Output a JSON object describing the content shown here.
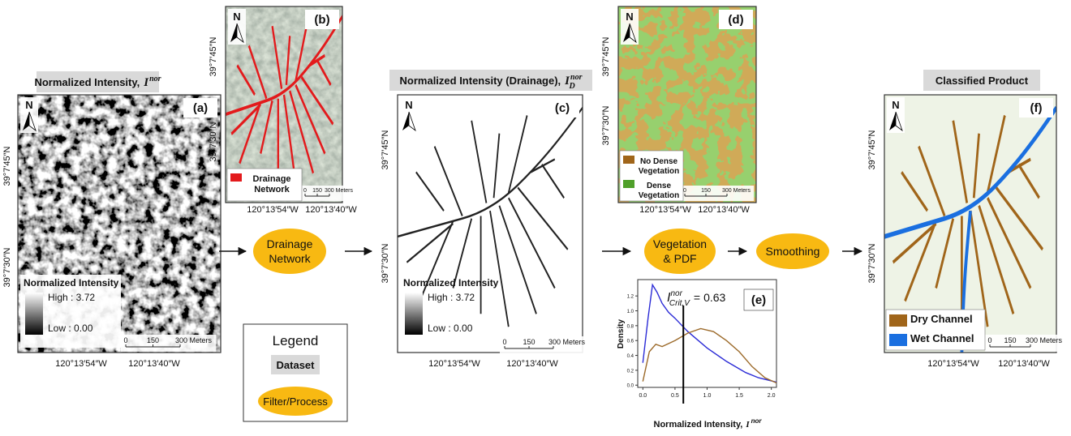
{
  "panels": {
    "a": {
      "header": {
        "text": "Normalized Intensity,",
        "symbol": "I",
        "sup": "nor"
      },
      "label": "(a)",
      "north": "N",
      "legend": {
        "title": "Normalized Intensity",
        "high": "High : 3.72",
        "low": "Low : 0.00"
      },
      "scale": [
        "0",
        "150",
        "300 Meters"
      ],
      "lat": [
        "39°7′45″N",
        "39°7′30″N"
      ],
      "lon": [
        "120°13′54″W",
        "120°13′40″W"
      ]
    },
    "b": {
      "label": "(b)",
      "north": "N",
      "legend": {
        "items": [
          {
            "lines": [
              "Drainage",
              "Network"
            ],
            "color": "#e31a1c"
          }
        ]
      },
      "scale": [
        "0",
        "150",
        "300 Meters"
      ],
      "lat": [
        "39°7′45″N",
        "39°7′30″N"
      ],
      "lon": [
        "120°13′54″W",
        "120°13′40″W"
      ]
    },
    "c": {
      "header": {
        "text": "Normalized Intensity (Drainage),",
        "symbol": "I",
        "sub": "D",
        "sup": "nor"
      },
      "label": "(c)",
      "north": "N",
      "legend": {
        "title": "Normalized Intensity",
        "high": "High : 3.72",
        "low": "Low : 0.00"
      },
      "scale": [
        "0",
        "150",
        "300 Meters"
      ],
      "lat": [
        "39°7′45″N",
        "39°7′30″N"
      ],
      "lon": [
        "120°13′54″W",
        "120°13′40″W"
      ]
    },
    "d": {
      "label": "(d)",
      "north": "N",
      "legend": {
        "items": [
          {
            "lines": [
              "No Dense",
              "Vegetation"
            ],
            "color": "#a0651a"
          },
          {
            "lines": [
              "Dense",
              "Vegetation"
            ],
            "color": "#4fa02a"
          }
        ]
      },
      "scale": [
        "0",
        "150",
        "300 Meters"
      ],
      "lat": [
        "39°7′45″N",
        "39°7′30″N"
      ],
      "lon": [
        "120°13′54″W",
        "120°13′40″W"
      ]
    },
    "e": {
      "label": "(e)",
      "y_label": "Density",
      "x_label": {
        "text": "Normalized Intensity,",
        "symbol": "I",
        "sup": "nor"
      },
      "annotation": {
        "symbol": "I",
        "sub": "Crit,V",
        "sup": "nor",
        "equals": "="
      },
      "threshold": 0.63,
      "xlim": [
        -0.08,
        2.08
      ],
      "ylim": [
        -0.03,
        1.42
      ],
      "xticks": [
        {
          "value": 0,
          "label": "0.0"
        },
        0.5,
        {
          "value": 1,
          "label": "1.0"
        },
        1.5,
        {
          "value": 2,
          "label": "2.0"
        }
      ],
      "yticks": [
        {
          "value": 0,
          "label": "0.0"
        },
        0.2,
        0.4,
        0.6,
        0.8,
        {
          "value": 1,
          "label": "1.0"
        },
        1.2
      ],
      "curves": [
        {
          "color": "#2b2bd6",
          "x": [
            0.0,
            0.08,
            0.15,
            0.22,
            0.3,
            0.4,
            0.5,
            0.7,
            1.0,
            1.3,
            1.6,
            1.8,
            2.08
          ],
          "values": [
            0.3,
            0.9,
            1.35,
            1.25,
            1.1,
            0.98,
            0.9,
            0.72,
            0.5,
            0.32,
            0.17,
            0.1,
            0.04
          ]
        },
        {
          "color": "#9c6a2a",
          "x": [
            0.0,
            0.1,
            0.2,
            0.3,
            0.5,
            0.7,
            0.9,
            1.1,
            1.3,
            1.5,
            1.7,
            1.9,
            2.08
          ],
          "values": [
            0.05,
            0.45,
            0.55,
            0.52,
            0.6,
            0.7,
            0.76,
            0.72,
            0.6,
            0.45,
            0.25,
            0.1,
            0.03
          ]
        }
      ]
    },
    "f": {
      "header": {
        "text": "Classified Product"
      },
      "label": "(f)",
      "north": "N",
      "legend": {
        "items": [
          {
            "lines": [
              "Dry Channel"
            ],
            "color": "#a0651a"
          },
          {
            "lines": [
              "Wet Channel"
            ],
            "color": "#1a6fe0"
          }
        ]
      },
      "scale": [
        "0",
        "150",
        "300 Meters"
      ],
      "lat": [
        "39°7′45″N",
        "39°7′30″N"
      ],
      "lon": [
        "120°13′54″W",
        "120°13′40″W"
      ]
    }
  },
  "process": [
    {
      "lines": [
        "Drainage",
        "Network"
      ]
    },
    {
      "lines": [
        "Vegetation",
        "& PDF"
      ]
    },
    {
      "lines": [
        "Smoothing"
      ]
    }
  ],
  "key": {
    "title": "Legend",
    "dataset": "Dataset",
    "process": "Filter/Process"
  }
}
